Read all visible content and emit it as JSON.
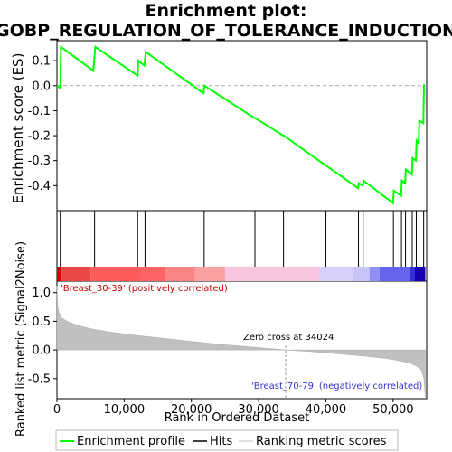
{
  "chart_data": {
    "type": "line",
    "title_line1": "Enrichment plot:",
    "title_line2": "GOBP_REGULATION_OF_TOLERANCE_INDUCTION",
    "ylabel_top": "Enrichment score (ES)",
    "ylabel_bottom": "Ranked list metric (Signal2Noise)",
    "xlabel": "Rank in Ordered Dataset",
    "xlim": [
      0,
      55000
    ],
    "es_ylim": [
      -0.5,
      0.18
    ],
    "metric_ylim": [
      -0.85,
      1.2
    ],
    "es_yticks": [
      -0.4,
      -0.3,
      -0.2,
      -0.1,
      0.0,
      0.1
    ],
    "es_ytick_labels": [
      "-0.4",
      "-0.3",
      "-0.2",
      "-0.1",
      "0.0",
      "0.1"
    ],
    "metric_yticks": [
      -0.5,
      0.0,
      0.5,
      1.0
    ],
    "metric_ytick_labels": [
      "-0.5",
      "0.0",
      "0.5",
      "1.0"
    ],
    "xticks": [
      0,
      10000,
      20000,
      30000,
      40000,
      50000
    ],
    "xtick_labels": [
      "0",
      "10,000",
      "20,000",
      "30,000",
      "40,000",
      "50,000"
    ],
    "es_color": "#00ff00",
    "enrichment_profile": {
      "x": [
        0,
        500,
        600,
        5400,
        5700,
        12000,
        12100,
        13000,
        13200,
        21800,
        21950,
        29400,
        29500,
        33700,
        33750,
        40000,
        40050,
        44800,
        44900,
        45500,
        45600,
        50000,
        50100,
        51200,
        51300,
        51800,
        51900,
        52800,
        52900,
        53400,
        53500,
        53800,
        53900,
        54500,
        54600
      ],
      "y": [
        0.0,
        -0.01,
        0.155,
        0.06,
        0.155,
        0.04,
        0.1,
        0.08,
        0.135,
        -0.03,
        0.0,
        -0.13,
        -0.13,
        -0.2,
        -0.2,
        -0.32,
        -0.32,
        -0.41,
        -0.39,
        -0.4,
        -0.38,
        -0.47,
        -0.42,
        -0.44,
        -0.38,
        -0.39,
        -0.335,
        -0.355,
        -0.29,
        -0.3,
        -0.22,
        -0.23,
        -0.14,
        -0.15,
        0.005
      ]
    },
    "hits": [
      500,
      5600,
      12000,
      13100,
      21900,
      29450,
      33700,
      40000,
      44850,
      45550,
      50050,
      51250,
      51850,
      52850,
      53450,
      53850,
      54550
    ],
    "metric_curve": {
      "x": [
        0,
        100,
        300,
        700,
        1500,
        3000,
        5000,
        8000,
        12000,
        16000,
        20000,
        24000,
        28000,
        32000,
        34024,
        38000,
        42000,
        46000,
        49000,
        51000,
        52500,
        53500,
        54200,
        54600,
        54800
      ],
      "y": [
        1.12,
        0.8,
        0.65,
        0.56,
        0.5,
        0.43,
        0.37,
        0.31,
        0.25,
        0.2,
        0.15,
        0.1,
        0.06,
        0.02,
        0.0,
        -0.03,
        -0.07,
        -0.11,
        -0.15,
        -0.19,
        -0.23,
        -0.28,
        -0.35,
        -0.5,
        -0.82
      ]
    },
    "zero_cross_label": "Zero cross at 34024",
    "zero_cross": 34024,
    "pos_label": "'Breast_30-39' (positively correlated)",
    "neg_label": "'Breast_70-79' (negatively correlated)",
    "pos_label_color": "#cc0000",
    "neg_label_color": "#3333cc",
    "heatmap_segments": [
      {
        "start": 0,
        "end": 700,
        "color": "#d40000"
      },
      {
        "start": 700,
        "end": 5000,
        "color": "#e84848"
      },
      {
        "start": 5000,
        "end": 12500,
        "color": "#fc5c5c"
      },
      {
        "start": 12500,
        "end": 16000,
        "color": "#fc6464"
      },
      {
        "start": 16000,
        "end": 20500,
        "color": "#f98484"
      },
      {
        "start": 20500,
        "end": 25000,
        "color": "#f9a0a0"
      },
      {
        "start": 25000,
        "end": 39000,
        "color": "#f8c4e0"
      },
      {
        "start": 39000,
        "end": 44000,
        "color": "#d8d0f8"
      },
      {
        "start": 44000,
        "end": 46500,
        "color": "#c8c4f8"
      },
      {
        "start": 46500,
        "end": 48000,
        "color": "#9090f4"
      },
      {
        "start": 48000,
        "end": 52500,
        "color": "#6464ec"
      },
      {
        "start": 52500,
        "end": 53200,
        "color": "#3030d8"
      },
      {
        "start": 53200,
        "end": 54800,
        "color": "#1800b0"
      }
    ],
    "legend": [
      {
        "label": "Enrichment profile",
        "color": "#00ff00"
      },
      {
        "label": "Hits",
        "color": "#000000"
      },
      {
        "label": "Ranking metric scores",
        "color": "#c0c0c0"
      }
    ]
  }
}
